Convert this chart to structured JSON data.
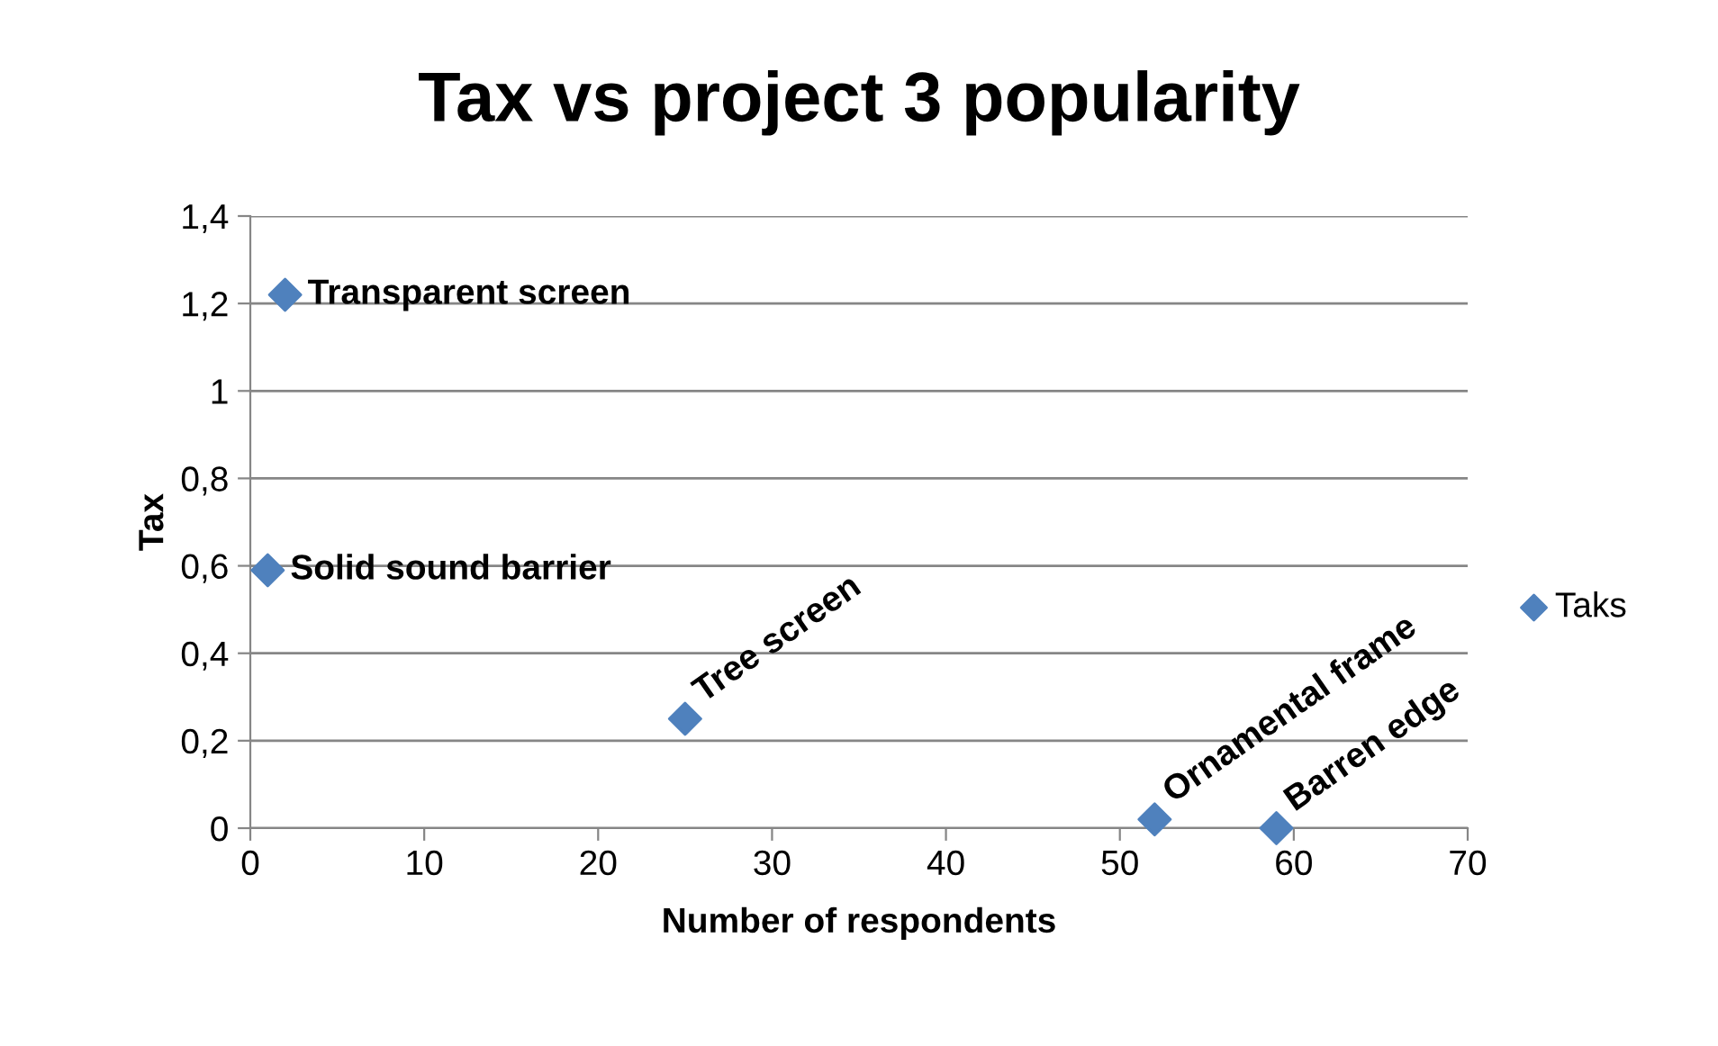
{
  "chart_data": {
    "type": "scatter",
    "title": "Tax vs project 3 popularity",
    "xlabel": "Number of respondents",
    "ylabel": "Tax",
    "series": [
      {
        "name": "Taks",
        "color": "#4f81bd",
        "x": [
          2,
          1,
          25,
          52,
          59
        ],
        "values": [
          1.22,
          0.59,
          0.25,
          0.02,
          0
        ]
      }
    ],
    "annotations": [
      {
        "text": "Transparent screen",
        "x": 2,
        "y": 1.22
      },
      {
        "text": "Solid sound barrier",
        "x": 1,
        "y": 0.59
      },
      {
        "text": "Tree screen",
        "x": 25,
        "y": 0.25
      },
      {
        "text": "Ornamental frame",
        "x": 52,
        "y": 0.02
      },
      {
        "text": "Barren edge",
        "x": 59,
        "y": 0
      }
    ],
    "xlim": [
      0,
      70
    ],
    "xticks": [
      0,
      10,
      20,
      30,
      40,
      50,
      60,
      70
    ],
    "ylim": [
      0,
      1.4
    ],
    "yticks": [
      0,
      {
        "value": 0.2,
        "label": "0,2"
      },
      {
        "value": 0.4,
        "label": "0,4"
      },
      {
        "value": 0.6,
        "label": "0,6"
      },
      {
        "value": 0.8,
        "label": "0,8"
      },
      1,
      {
        "value": 1.2,
        "label": "1,2"
      },
      {
        "value": 1.4,
        "label": "1,4"
      }
    ],
    "grid": "y",
    "legend": "right",
    "marker": "diamond"
  }
}
